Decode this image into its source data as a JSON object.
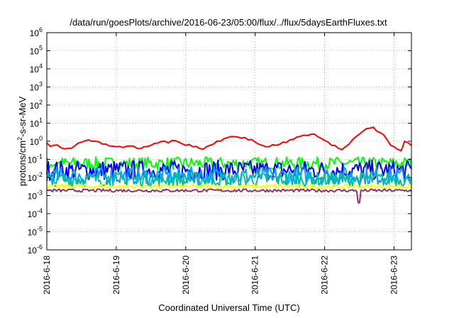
{
  "chart_data": {
    "type": "line",
    "title": "/data/run/goesPlots/archive/2016-06-23/05:00/flux/../flux/5daysEarthFluxes.txt",
    "xlabel": "Coordinated Universal Time (UTC)",
    "ylabel_parts": [
      "protons/cm",
      "2",
      "-s-sr-MeV"
    ],
    "yscale": "log",
    "ylim_exp": [
      -6,
      6
    ],
    "ytick_exponents": [
      -6,
      -5,
      -4,
      -3,
      -2,
      -1,
      0,
      1,
      2,
      3,
      4,
      5,
      6
    ],
    "ytick_base": "10",
    "xlim_days": [
      0,
      5.25
    ],
    "x_ticks": [
      {
        "label": "2016-6-18",
        "day": 0
      },
      {
        "label": "2016-6-19",
        "day": 1
      },
      {
        "label": "2016-6-20",
        "day": 2
      },
      {
        "label": "2016-6-21",
        "day": 3
      },
      {
        "label": "2016-6-22",
        "day": 4
      },
      {
        "label": "2016-6-23",
        "day": 5
      }
    ],
    "grid": true,
    "series": [
      {
        "color": "#ff0000",
        "x_days": [
          0,
          0.1,
          0.2,
          0.3,
          0.4,
          0.5,
          0.6,
          0.7,
          0.8,
          0.9,
          1.0,
          1.1,
          1.2,
          1.3,
          1.4,
          1.5,
          1.6,
          1.7,
          1.8,
          1.9,
          2.0,
          2.1,
          2.2,
          2.3,
          2.4,
          2.5,
          2.6,
          2.7,
          2.8,
          2.9,
          3.0,
          3.1,
          3.2,
          3.3,
          3.4,
          3.5,
          3.6,
          3.7,
          3.8,
          3.9,
          4.0,
          4.1,
          4.2,
          4.3,
          4.4,
          4.5,
          4.6,
          4.7,
          4.8,
          4.9,
          5.0,
          5.1,
          5.15,
          5.25
        ],
        "y": [
          0.8,
          0.6,
          0.45,
          0.4,
          0.55,
          0.9,
          1.2,
          1.0,
          0.7,
          0.55,
          0.5,
          0.45,
          0.55,
          0.4,
          0.5,
          0.6,
          0.8,
          1.0,
          1.1,
          0.9,
          0.6,
          0.5,
          0.4,
          0.5,
          0.7,
          1.0,
          1.6,
          1.8,
          1.5,
          1.2,
          0.9,
          0.6,
          0.5,
          0.6,
          0.9,
          1.2,
          1.7,
          2.2,
          2.4,
          1.8,
          1.1,
          0.6,
          0.4,
          0.5,
          1.2,
          2.5,
          5.0,
          6.0,
          3.0,
          1.2,
          0.5,
          0.3,
          1.0,
          0.6
        ]
      },
      {
        "color": "#00ff00",
        "level": 0.06,
        "spread": 0.35
      },
      {
        "color": "#0000ff",
        "level": 0.025,
        "spread": 0.55
      },
      {
        "color": "#00a0ff",
        "level": 0.012,
        "spread": 0.5
      },
      {
        "color": "#00c0a0",
        "level": 0.008,
        "spread": 0.4
      },
      {
        "color": "#ffff00",
        "level": 0.0032,
        "spread": 0.12
      },
      {
        "color": "#903070",
        "level": 0.0019,
        "spread": 0.08,
        "dip": {
          "day": 4.5,
          "value": 0.0004
        }
      }
    ]
  }
}
